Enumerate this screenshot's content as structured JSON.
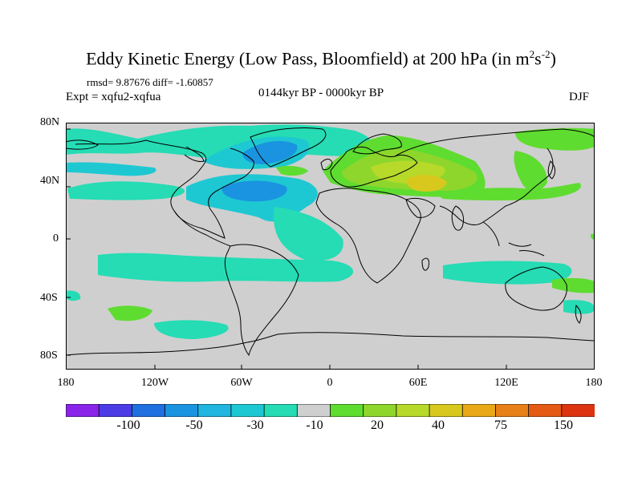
{
  "title": {
    "main": "Eddy Kinetic Energy (Low Pass, Bloomfield) at 200 hPa (in m",
    "sup1": "2",
    "mid": "s",
    "sup2": "-2",
    "close": ")"
  },
  "stats": "rmsd= 9.87676 diff= -1.60857",
  "expt": "Expt = xqfu2-xqfua",
  "period": "0144kyr BP - 0000kyr BP",
  "season": "DJF",
  "axes": {
    "lat_ticks": [
      "80N",
      "40N",
      "0",
      "40S",
      "80S"
    ],
    "lon_ticks": [
      "180",
      "120W",
      "60W",
      "0",
      "60E",
      "120E",
      "180"
    ]
  },
  "colorbar": {
    "colors": [
      "#8a24e8",
      "#4b3ce6",
      "#1f6fe0",
      "#1a94e0",
      "#20b6e0",
      "#1ec8d2",
      "#25dcb4",
      "#cfcfcf",
      "#5fdc30",
      "#8ed62c",
      "#b6d92a",
      "#d8c81e",
      "#e8a818",
      "#e88018",
      "#e45a14",
      "#dc3410"
    ],
    "labels": [
      "-100",
      "-50",
      "-30",
      "-10",
      "20",
      "40",
      "75",
      "150"
    ]
  },
  "map": {
    "land_background": "#cfcfcf",
    "anomaly_colors": {
      "light_cyan": "#25dcb4",
      "cyan": "#1ec8d2",
      "blue": "#1a94e0",
      "light_green": "#5fdc30",
      "green": "#8ed62c",
      "yellow_green": "#b6d92a",
      "yellow": "#d8c81e"
    }
  }
}
